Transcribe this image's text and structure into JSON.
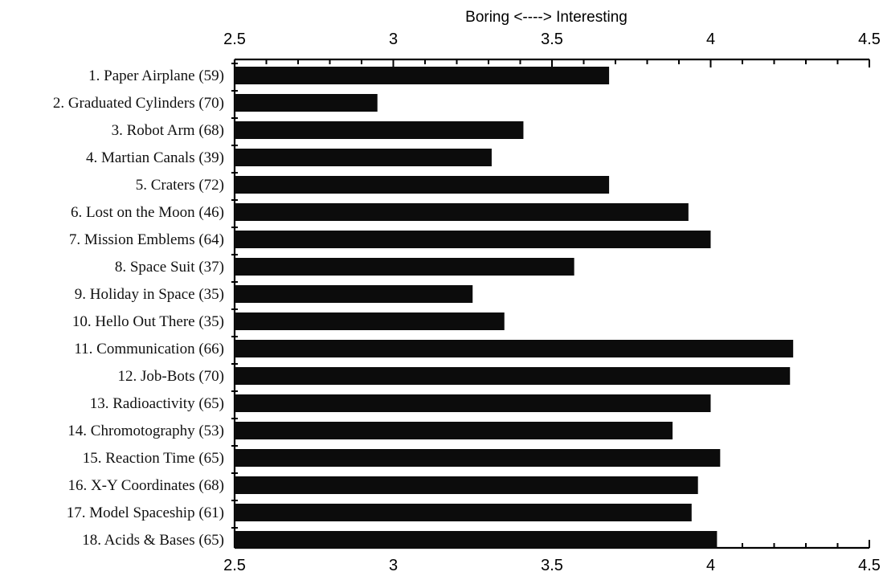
{
  "chart_data": {
    "type": "bar",
    "orientation": "horizontal",
    "title": "",
    "xlabel": "Boring <----> Interesting",
    "ylabel": "",
    "xlim": [
      2.5,
      4.5
    ],
    "major_ticks": [
      "2.5",
      "3",
      "3.5",
      "4",
      "4.5"
    ],
    "axes": [
      "top",
      "bottom",
      "left"
    ],
    "grid": false,
    "legend": "none",
    "bar_color": "#0c0c0c",
    "categories": [
      "1.  Paper Airplane (59)",
      "2. Graduated Cylinders (70)",
      "3. Robot Arm (68)",
      "4. Martian Canals (39)",
      "5. Craters (72)",
      "6. Lost on the Moon (46)",
      "7. Mission Emblems (64)",
      "8. Space Suit (37)",
      "9. Holiday in Space (35)",
      "10. Hello Out There (35)",
      "11.  Communication (66)",
      "12. Job-Bots (70)",
      "13. Radioactivity (65)",
      "14. Chromotography (53)",
      "15. Reaction Time (65)",
      "16. X-Y Coordinates (68)",
      "17. Model Spaceship (61)",
      "18. Acids & Bases (65)"
    ],
    "values": [
      3.68,
      2.95,
      3.41,
      3.31,
      3.68,
      3.93,
      4.0,
      3.57,
      3.25,
      3.35,
      4.26,
      4.25,
      4.0,
      3.88,
      4.03,
      3.96,
      3.94,
      4.02
    ]
  }
}
